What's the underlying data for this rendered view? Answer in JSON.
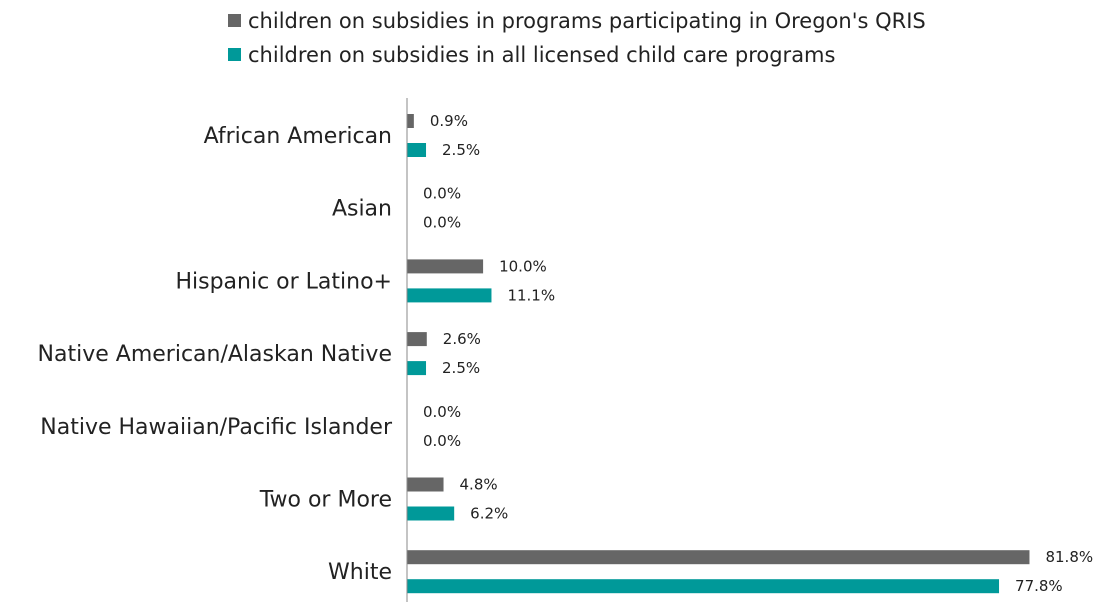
{
  "colors": {
    "series_1": "#666666",
    "series_2": "#009999",
    "axis": "#8a8a8a",
    "text": "#222222"
  },
  "chart_data": {
    "type": "bar",
    "orientation": "horizontal",
    "title": "",
    "xlabel": "",
    "ylabel": "",
    "categories": [
      "African American",
      "Asian",
      "Hispanic or Latino+",
      "Native American/Alaskan Native",
      "Native Hawaiian/Pacific Islander",
      "Two or More",
      "White"
    ],
    "series": [
      {
        "name": "children on subsidies in programs participating in Oregon's QRIS",
        "values": [
          0.9,
          0.0,
          10.0,
          2.6,
          0.0,
          4.8,
          81.8
        ],
        "labels": [
          "0.9%",
          "0.0%",
          "10.0%",
          "2.6%",
          "0.0%",
          "4.8%",
          "81.8%"
        ]
      },
      {
        "name": "children on subsidies in all licensed child care programs",
        "values": [
          2.5,
          0.0,
          11.1,
          2.5,
          0.0,
          6.2,
          77.8
        ],
        "labels": [
          "2.5%",
          "0.0%",
          "11.1%",
          "2.5%",
          "0.0%",
          "6.2%",
          "77.8%"
        ]
      }
    ],
    "xlim": [
      0,
      82
    ],
    "legend_position": "top",
    "grid": false
  }
}
